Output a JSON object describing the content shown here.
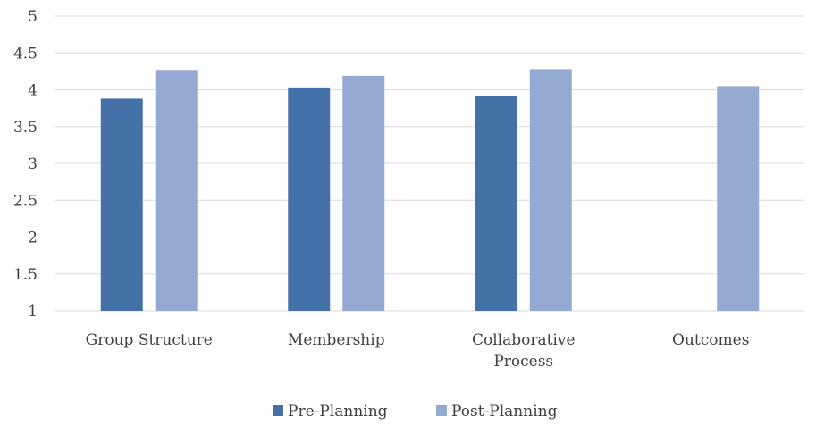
{
  "chart_data": {
    "type": "bar",
    "categories": [
      "Group Structure",
      "Membership",
      "Collaborative Process",
      "Outcomes"
    ],
    "category_label_lines": [
      [
        "Group Structure"
      ],
      [
        "Membership"
      ],
      [
        "Collaborative",
        "Process"
      ],
      [
        "Outcomes"
      ]
    ],
    "series": [
      {
        "name": "Pre-Planning",
        "values": [
          3.88,
          4.02,
          3.91,
          null
        ],
        "color": "#4472a8"
      },
      {
        "name": "Post-Planning",
        "values": [
          4.27,
          4.19,
          4.28,
          4.05
        ],
        "color": "#95aad3"
      }
    ],
    "ylim": [
      1,
      5
    ],
    "yticks": [
      "1",
      "1.5",
      "2",
      "2.5",
      "3",
      "3.5",
      "4",
      "4.5",
      "5"
    ],
    "ytick_values": [
      1,
      1.5,
      2,
      2.5,
      3,
      3.5,
      4,
      4.5,
      5
    ],
    "grid": true,
    "legend_position": "bottom",
    "title": "",
    "xlabel": "",
    "ylabel": ""
  }
}
